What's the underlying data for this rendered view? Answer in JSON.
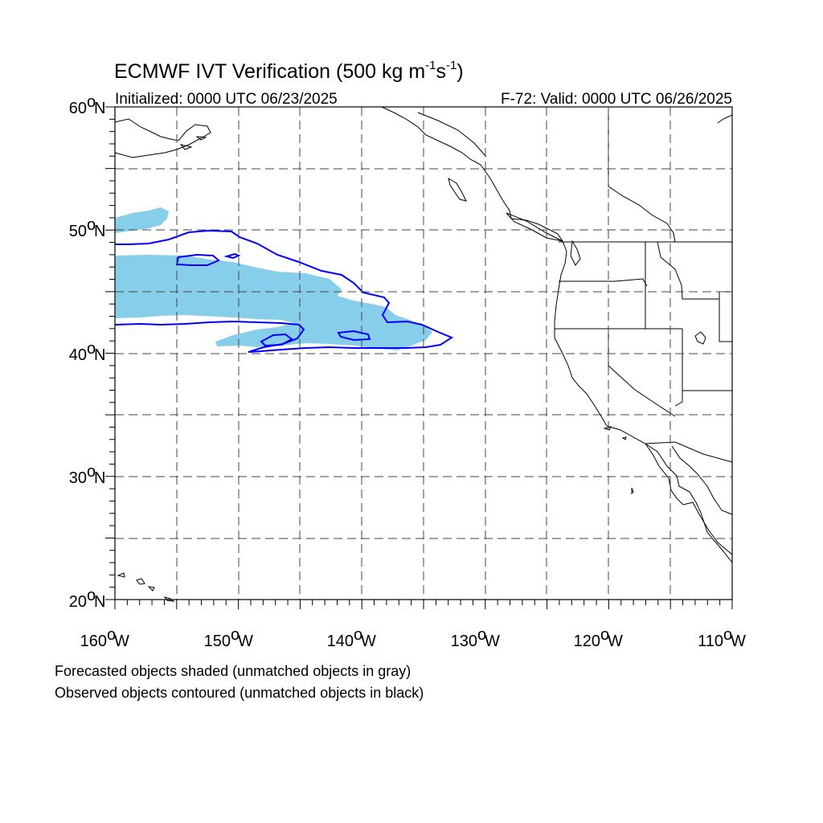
{
  "title_main": "ECMWF IVT Verification (500 kg m",
  "title_exp1": "-1",
  "title_mid": "s",
  "title_exp2": "-1",
  "title_end": ")",
  "init_text": "Initialized: 0000 UTC 06/23/2025",
  "valid_text": "F-72: Valid: 0000 UTC 06/26/2025",
  "lat_labels": [
    "60",
    "50",
    "40",
    "30",
    "20"
  ],
  "lat_suffix": "N",
  "lon_labels": [
    "160",
    "150",
    "140",
    "130",
    "120",
    "110"
  ],
  "lon_suffix": "W",
  "notes": {
    "line1": "Forecasted objects shaded (unmatched objects in gray)",
    "line2": "Observed objects contoured (unmatched objects in black)"
  },
  "colors": {
    "forecast_fill": "#87CEEB",
    "observed_contour": "#0000FF",
    "coastline": "#000000",
    "grid": "#555555"
  },
  "map_extent": {
    "lon_min": -160,
    "lon_max": -110,
    "lat_min": 20,
    "lat_max": 60
  }
}
